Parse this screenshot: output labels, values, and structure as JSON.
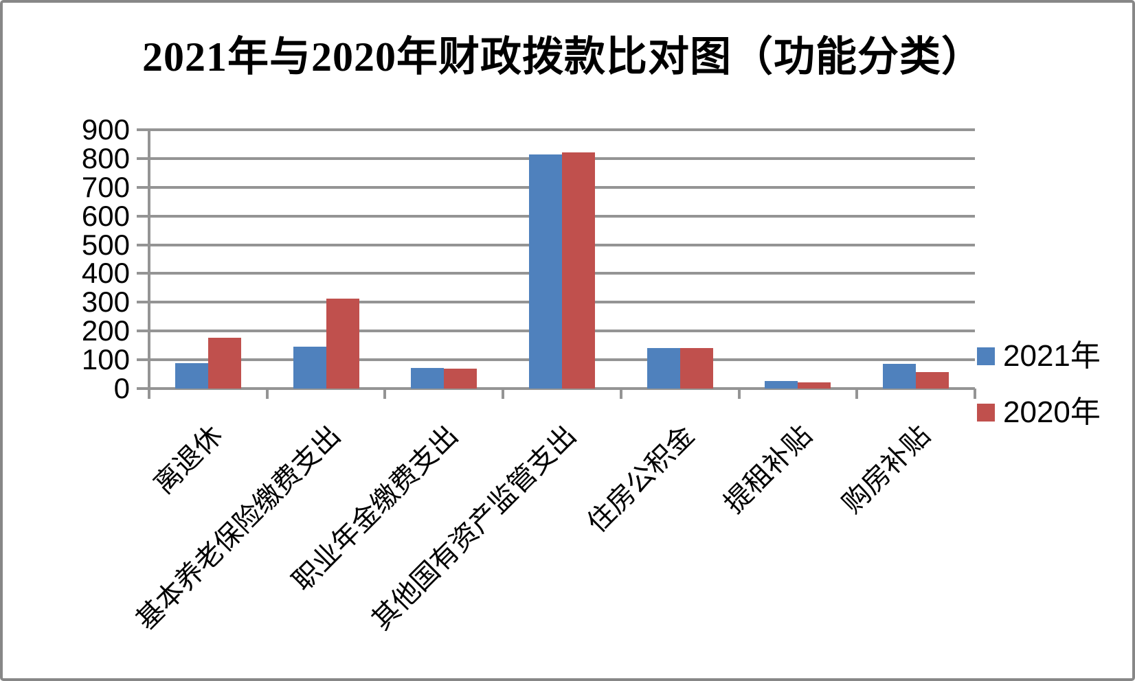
{
  "chart_data": {
    "type": "bar",
    "title": "2021年与2020年财政拨款比对图（功能分类）",
    "categories": [
      "离退休",
      "基本养老保险缴费支出",
      "职业年金缴费支出",
      "其他国有资产监管支出",
      "住房公积金",
      "提租补贴",
      "购房补贴"
    ],
    "series": [
      {
        "name": "2021年",
        "color": "#4F81BD",
        "values": [
          88,
          145,
          71,
          813,
          141,
          26,
          86
        ]
      },
      {
        "name": "2020年",
        "color": "#C0504D",
        "values": [
          176,
          313,
          69,
          822,
          141,
          21,
          57
        ]
      }
    ],
    "xlabel": "",
    "ylabel": "",
    "ylim": [
      0,
      900
    ],
    "ytick_interval": 100,
    "yticks": [
      "0",
      "100",
      "200",
      "300",
      "400",
      "500",
      "600",
      "700",
      "800",
      "900"
    ],
    "grid": "horizontal",
    "legend_position": "right",
    "gridline_color": "#949494",
    "background_color": "#FFFFFF",
    "border_color": "#878787"
  }
}
